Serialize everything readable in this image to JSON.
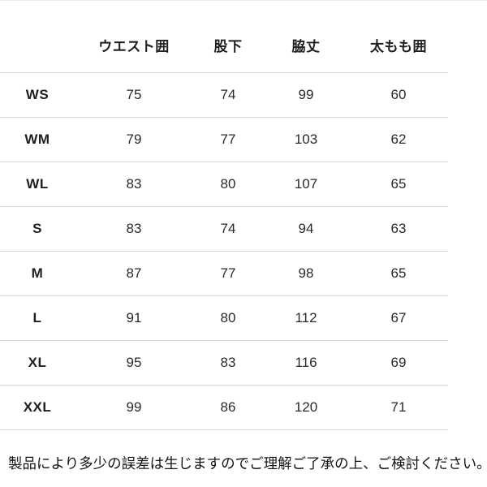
{
  "chart_data": {
    "type": "table",
    "columns": [
      "",
      "ウエスト囲",
      "股下",
      "脇丈",
      "太もも囲"
    ],
    "rows": [
      {
        "size": "WS",
        "values": [
          "75",
          "74",
          "99",
          "60"
        ]
      },
      {
        "size": "WM",
        "values": [
          "79",
          "77",
          "103",
          "62"
        ]
      },
      {
        "size": "WL",
        "values": [
          "83",
          "80",
          "107",
          "65"
        ]
      },
      {
        "size": "S",
        "values": [
          "83",
          "74",
          "94",
          "63"
        ]
      },
      {
        "size": "M",
        "values": [
          "87",
          "77",
          "98",
          "65"
        ]
      },
      {
        "size": "L",
        "values": [
          "91",
          "80",
          "112",
          "67"
        ]
      },
      {
        "size": "XL",
        "values": [
          "95",
          "83",
          "116",
          "69"
        ]
      },
      {
        "size": "XXL",
        "values": [
          "99",
          "86",
          "120",
          "71"
        ]
      }
    ],
    "legend_position": "none",
    "grid": "horizontal-dividers-only"
  },
  "footer": {
    "note": "製品により多少の誤差は生じますのでご理解ご了承の上、ご検討ください。"
  },
  "colors": {
    "background": "#ffffff",
    "text": "#1f1f1f",
    "divider": "#d8d8d8",
    "top_edge": "#ededed"
  }
}
